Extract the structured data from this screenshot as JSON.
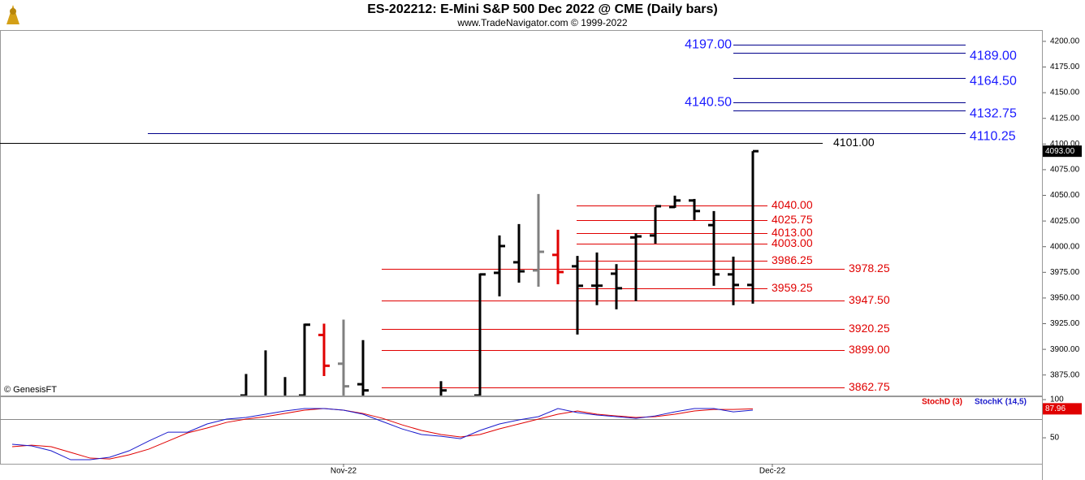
{
  "chart_data": [
    {
      "type": "ohlc",
      "title": "ES-202212:  E-Mini S&P 500 Dec 2022 @ CME  (Daily bars)",
      "subtitle": "www.TradeNavigator.com © 1999-2022",
      "annotation": "© GenesisFT",
      "ylim": [
        3855,
        4211
      ],
      "yticks": [
        {
          "value": 3875,
          "label": "3875.00"
        },
        {
          "value": 3900,
          "label": "3900.00"
        },
        {
          "value": 3925,
          "label": "3925.00"
        },
        {
          "value": 3950,
          "label": "3950.00"
        },
        {
          "value": 3975,
          "label": "3975.00"
        },
        {
          "value": 4000,
          "label": "4000.00"
        },
        {
          "value": 4025,
          "label": "4025.00"
        },
        {
          "value": 4050,
          "label": "4050.00"
        },
        {
          "value": 4075,
          "label": "4075.00"
        },
        {
          "value": 4100,
          "label": "4100.00"
        },
        {
          "value": 4125,
          "label": "4125.00"
        },
        {
          "value": 4150,
          "label": "4150.00"
        },
        {
          "value": 4175,
          "label": "4175.00"
        },
        {
          "value": 4200,
          "label": "4200.00"
        }
      ],
      "open": [
        null,
        null,
        null,
        null,
        null,
        null,
        null,
        null,
        null,
        null,
        null,
        null,
        3855,
        3850,
        3850,
        3855,
        3914,
        3886,
        3866,
        null,
        null,
        null,
        3850,
        null,
        3855,
        3974.5,
        3984.8,
        3976.9,
        3992,
        3980.9,
        3962,
        3973.7,
        4009,
        4010.9,
        4038.6,
        4045,
        4021,
        3973,
        3962.7,
        null,
        null
      ],
      "high": [
        null,
        null,
        null,
        null,
        null,
        null,
        null,
        null,
        null,
        null,
        null,
        null,
        3876,
        3899,
        3873,
        3925,
        3925,
        3929,
        3909,
        null,
        null,
        null,
        3869,
        null,
        3974,
        4010.9,
        4022,
        4051.3,
        4016.5,
        3991,
        3994.3,
        3983,
        4013,
        4038.6,
        4049.7,
        4046.5,
        4034.7,
        3990.3,
        4093,
        null,
        null
      ],
      "low": [
        null,
        null,
        null,
        null,
        null,
        null,
        null,
        null,
        null,
        null,
        null,
        null,
        3845,
        3845,
        3845,
        3850,
        3874,
        3850,
        3850,
        null,
        null,
        null,
        3845,
        null,
        3850,
        3951.6,
        3965,
        3961,
        3963.4,
        3914.4,
        3943,
        3939,
        3947,
        4003,
        4037.8,
        4026,
        3961.9,
        3943,
        3944.5,
        null,
        null
      ],
      "close": [
        null,
        null,
        null,
        null,
        null,
        null,
        null,
        null,
        null,
        null,
        null,
        null,
        3852,
        3848,
        3850,
        3924,
        3884,
        3864,
        3860,
        null,
        null,
        null,
        3860,
        null,
        3973,
        4000.6,
        3976,
        3995,
        3975.3,
        3961.9,
        3962,
        3959.5,
        4010,
        4039.4,
        4045,
        4034.7,
        3973,
        3962.7,
        4093,
        null,
        null
      ],
      "colors": [
        null,
        null,
        null,
        null,
        null,
        null,
        null,
        null,
        null,
        null,
        null,
        null,
        "#000000",
        "#000000",
        "#000000",
        "#000000",
        "#e00000",
        "#808080",
        "#000000",
        null,
        null,
        null,
        "#000000",
        null,
        "#000000",
        "#000000",
        "#000000",
        "#808080",
        "#e00000",
        "#000000",
        "#000000",
        "#000000",
        "#000000",
        "#000000",
        "#000000",
        "#000000",
        "#000000",
        "#000000",
        "#000000",
        null,
        null
      ],
      "last_value": {
        "value": 4093,
        "label": "4093.00"
      },
      "levels": [
        {
          "value": 4197,
          "label": "4197.00",
          "color": "#1a1aff"
        },
        {
          "value": 4189,
          "label": "4189.00",
          "color": "#1a1aff"
        },
        {
          "value": 4164.5,
          "label": "4164.50",
          "color": "#1a1aff"
        },
        {
          "value": 4140.5,
          "label": "4140.50",
          "color": "#1a1aff"
        },
        {
          "value": 4132.75,
          "label": "4132.75",
          "color": "#1a1aff"
        },
        {
          "value": 4110.25,
          "label": "4110.25",
          "color": "#1a1aff"
        },
        {
          "value": 4101,
          "label": "4101.00",
          "color": "#000000"
        },
        {
          "value": 4040,
          "label": "4040.00",
          "color": "#e00000"
        },
        {
          "value": 4025.75,
          "label": "4025.75",
          "color": "#e00000"
        },
        {
          "value": 4013,
          "label": "4013.00",
          "color": "#e00000"
        },
        {
          "value": 4003,
          "label": "4003.00",
          "color": "#e00000"
        },
        {
          "value": 3986.25,
          "label": "3986.25",
          "color": "#e00000"
        },
        {
          "value": 3978.25,
          "label": "3978.25",
          "color": "#e00000"
        },
        {
          "value": 3959.25,
          "label": "3959.25",
          "color": "#e00000"
        },
        {
          "value": 3947.5,
          "label": "3947.50",
          "color": "#e00000"
        },
        {
          "value": 3920.25,
          "label": "3920.25",
          "color": "#e00000"
        },
        {
          "value": 3899,
          "label": "3899.00",
          "color": "#e00000"
        },
        {
          "value": 3862.75,
          "label": "3862.75",
          "color": "#e00000"
        }
      ]
    },
    {
      "type": "line",
      "categories": [
        null,
        null,
        null,
        null,
        null,
        null,
        null,
        null,
        null,
        null,
        null,
        null,
        null,
        null,
        null,
        null,
        null,
        "Nov-22",
        null,
        null,
        null,
        null,
        null,
        null,
        null,
        null,
        null,
        null,
        null,
        null,
        null,
        null,
        null,
        null,
        null,
        null,
        null,
        null,
        null,
        "Dec-22",
        null
      ],
      "ylim": [
        16,
        104.3
      ],
      "yticks": [
        50,
        100
      ],
      "reference_lines": [
        75
      ],
      "last_value": 87.96,
      "series": [
        {
          "name": "StochD (3)",
          "color": "#e00000",
          "values": [
            38.3,
            40.4,
            38.3,
            30.9,
            23.4,
            22.3,
            27.7,
            35.1,
            45.7,
            56.4,
            62.8,
            70.2,
            74.5,
            77.7,
            81.9,
            86.2,
            88.3,
            86.2,
            81.9,
            75.5,
            67.0,
            59.6,
            54.3,
            51.1,
            54.3,
            61.7,
            68.1,
            74.5,
            80.9,
            85.1,
            80.9,
            78.7,
            76.6,
            77.7,
            80.9,
            85.1,
            87.2,
            87.2,
            87.96,
            null,
            null
          ]
        },
        {
          "name": "StochK (14,5)",
          "color": "#1a1acc",
          "values": [
            41.5,
            39.4,
            33.0,
            21.3,
            21.3,
            24.5,
            33.0,
            45.7,
            57.4,
            57.4,
            68.1,
            74.5,
            76.6,
            80.9,
            85.1,
            88.3,
            88.3,
            86.2,
            80.9,
            71.3,
            61.7,
            54.3,
            52.1,
            48.9,
            59.6,
            68.1,
            73.4,
            77.7,
            88.3,
            83.0,
            79.8,
            77.7,
            75.5,
            78.7,
            84.0,
            88.3,
            88.3,
            84.0,
            86.2,
            null,
            null
          ]
        }
      ]
    }
  ]
}
